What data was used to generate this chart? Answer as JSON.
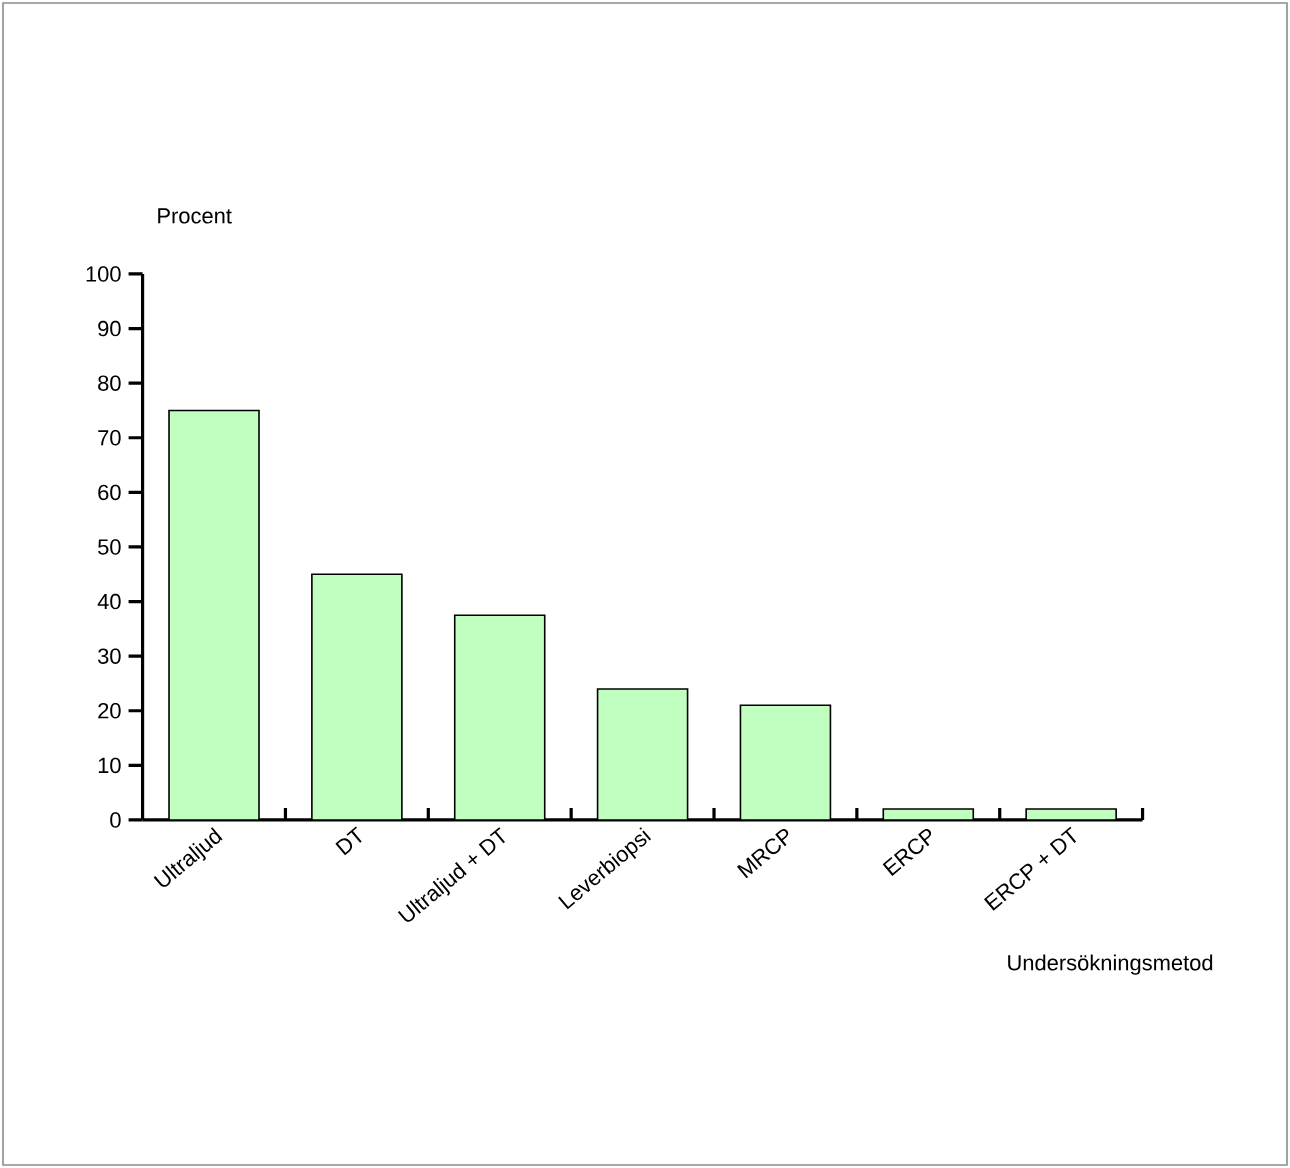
{
  "chart_data": {
    "type": "bar",
    "xlabel": "Undersökningsmetod",
    "ylabel": "Procent",
    "categories": [
      "Ultraljud",
      "DT",
      "Ultraljud + DT",
      "Leverbiopsi",
      "MRCP",
      "ERCP",
      "ERCP + DT"
    ],
    "values": [
      75,
      45,
      37.5,
      24,
      21,
      2,
      2
    ],
    "color": "#c0ffc0",
    "ylim": [
      0,
      100
    ],
    "yticks": [
      0,
      10,
      20,
      30,
      40,
      50,
      60,
      70,
      80,
      90,
      100
    ]
  }
}
